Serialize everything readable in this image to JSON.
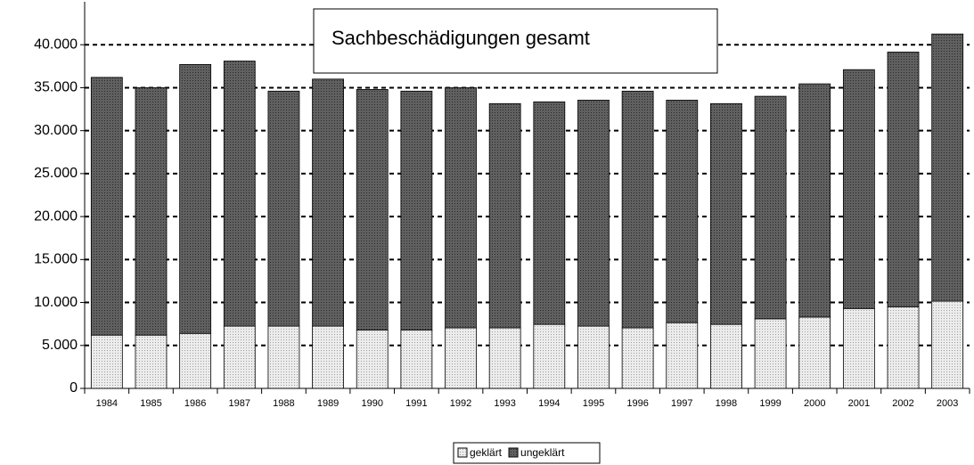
{
  "chart_data": {
    "type": "stacked_bar",
    "title": "Sachbeschädigungen gesamt",
    "categories": [
      "1984",
      "1985",
      "1986",
      "1987",
      "1988",
      "1989",
      "1990",
      "1991",
      "1992",
      "1993",
      "1994",
      "1995",
      "1996",
      "1997",
      "1998",
      "1999",
      "2000",
      "2001",
      "2002",
      "2003"
    ],
    "series": [
      {
        "name": "geklärt",
        "color": "#dcdcdc",
        "values": [
          6200,
          6200,
          6400,
          7250,
          7250,
          7250,
          6800,
          6800,
          7050,
          7050,
          7450,
          7250,
          7050,
          7650,
          7450,
          8100,
          8300,
          9300,
          9500,
          10150
        ]
      },
      {
        "name": "ungeklärt",
        "color": "#555555",
        "values": [
          30000,
          28800,
          31300,
          30850,
          27350,
          28750,
          28000,
          27800,
          27950,
          26100,
          25900,
          26300,
          27550,
          25900,
          25700,
          25900,
          27150,
          27800,
          29650,
          31100
        ]
      }
    ],
    "ylim": [
      0,
      45000
    ],
    "yticks": [
      0,
      {
        "value": 5000,
        "label": "5.000"
      },
      {
        "value": 10000,
        "label": "10.000"
      },
      {
        "value": 15000,
        "label": "15.000"
      },
      {
        "value": 20000,
        "label": "20.000"
      },
      {
        "value": 25000,
        "label": "25.000"
      },
      {
        "value": 30000,
        "label": "30.000"
      },
      {
        "value": 35000,
        "label": "35.000"
      },
      {
        "value": 40000,
        "label": "40.000"
      }
    ],
    "grid": true,
    "legend": "bottom"
  }
}
